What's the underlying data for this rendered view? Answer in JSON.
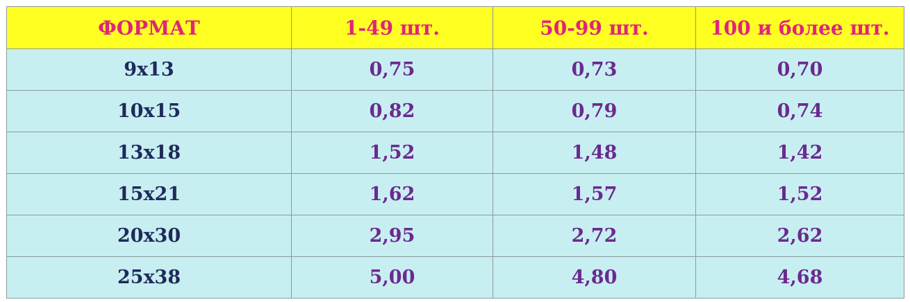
{
  "table": {
    "headers": [
      "ФОРМАТ",
      "1-49 шт.",
      "50-99 шт.",
      "100 и более шт."
    ],
    "rows": [
      {
        "format": "9x13",
        "prices": [
          "0,75",
          "0,73",
          "0,70"
        ]
      },
      {
        "format": "10x15",
        "prices": [
          "0,82",
          "0,79",
          "0,74"
        ]
      },
      {
        "format": "13x18",
        "prices": [
          "1,52",
          "1,48",
          "1,42"
        ]
      },
      {
        "format": "15x21",
        "prices": [
          "1,62",
          "1,57",
          "1,52"
        ]
      },
      {
        "format": "20x30",
        "prices": [
          "2,95",
          "2,72",
          "2,62"
        ]
      },
      {
        "format": "25x38",
        "prices": [
          "5,00",
          "4,80",
          "4,68"
        ]
      }
    ]
  },
  "colors": {
    "header_bg": "#ffff22",
    "header_text": "#e0247a",
    "cell_bg": "#c7eff2",
    "format_text": "#1f2a5a",
    "price_text": "#6b2a8e",
    "border": "#8a9a9c"
  }
}
